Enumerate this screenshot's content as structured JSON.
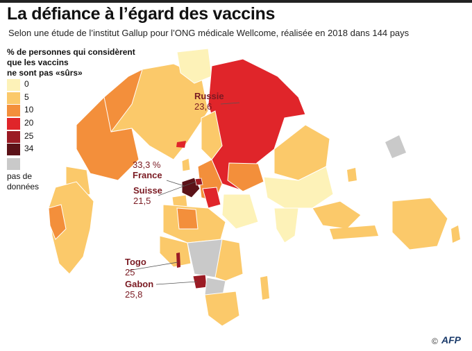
{
  "title": "La défiance à l’égard des vaccins",
  "subtitle": "Selon une étude de l’institut Gallup pour l’ONG médicale Wellcome, réalisée en 2018 dans 144 pays",
  "legend": {
    "title_lines": [
      "% de personnes qui considèrent",
      "que les vaccins",
      "ne sont pas «sûrs»"
    ],
    "bins": [
      {
        "label": "0",
        "color": "#fdf2b8"
      },
      {
        "label": "5",
        "color": "#fbc96a"
      },
      {
        "label": "10",
        "color": "#f38f3b"
      },
      {
        "label": "20",
        "color": "#e0252a"
      },
      {
        "label": "25",
        "color": "#9b1b24"
      },
      {
        "label": "34",
        "color": "#5b1218"
      }
    ],
    "nodata_label_lines": [
      "pas de",
      "données"
    ],
    "nodata_color": "#c9c9c9"
  },
  "annotations": {
    "russie": {
      "name": "Russie",
      "value": "23,6"
    },
    "france": {
      "value": "33,3 %",
      "name": "France"
    },
    "suisse": {
      "name": "Suisse",
      "value": "21,5"
    },
    "togo": {
      "name": "Togo",
      "value": "25"
    },
    "gabon": {
      "name": "Gabon",
      "value": "25,8"
    }
  },
  "credit": {
    "symbol": "©",
    "brand": "AFP"
  }
}
